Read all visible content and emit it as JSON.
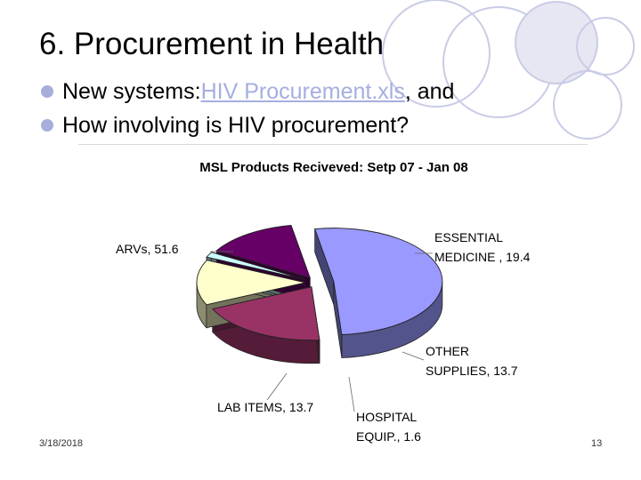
{
  "slide": {
    "title": "6. Procurement in Health",
    "bullets": [
      {
        "prefix": "New systems: ",
        "link": "HIV Procurement.xls",
        "suffix": ", and"
      },
      {
        "prefix": "How involving is HIV procurement?",
        "link": "",
        "suffix": ""
      }
    ],
    "date": "3/18/2018",
    "page_number": "13"
  },
  "colors": {
    "bullet": "#a8aedc",
    "link": "#a6aee0",
    "deco_circle_stroke": "#c9cce6",
    "deco_circle_fill": "#e6e7f2"
  },
  "chart_data": {
    "type": "pie",
    "style": "3d-exploded",
    "title": "MSL Products Reciveved: Setp 07 - Jan 08",
    "slices": [
      {
        "label": "ARVs, 51.6",
        "value": 51.6,
        "color": "#9999ff"
      },
      {
        "label": "ESSENTIAL MEDICINE , 19.4",
        "value": 19.4,
        "color": "#993366"
      },
      {
        "label": "OTHER SUPPLIES, 13.7",
        "value": 13.7,
        "color": "#ffffcc"
      },
      {
        "label": "HOSPITAL EQUIP., 1.6",
        "value": 1.6,
        "color": "#ccffff"
      },
      {
        "label": "LAB ITEMS, 13.7",
        "value": 13.7,
        "color": "#660066"
      }
    ]
  }
}
